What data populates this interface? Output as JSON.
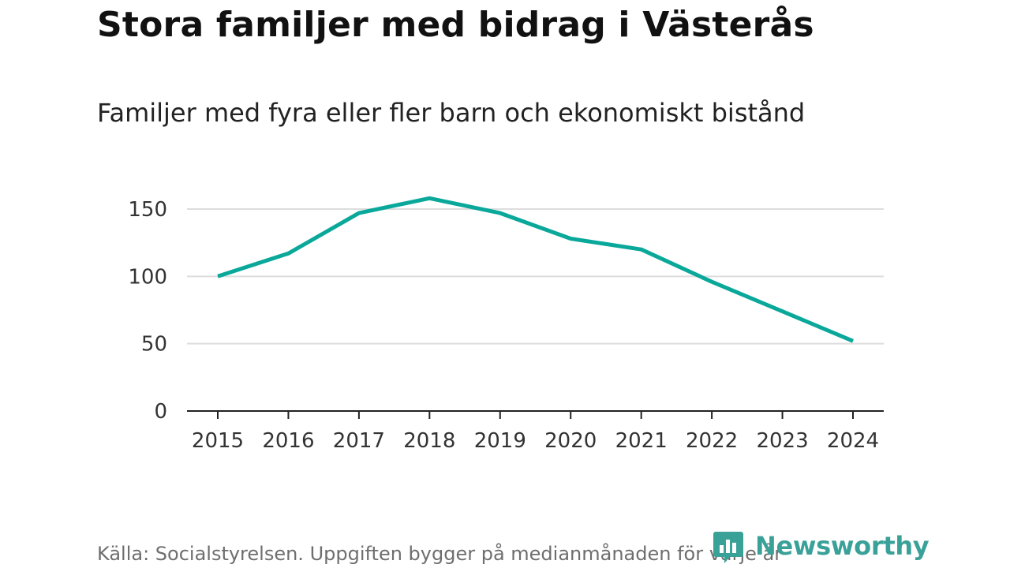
{
  "header": {
    "title": "Stora familjer med bidrag i Västerås",
    "subtitle": "Familjer med fyra eller fler barn och ekonomiskt bistånd"
  },
  "footer": {
    "source": "Källa: Socialstyrelsen. Uppgiften bygger på medianmånaden för varje år",
    "brand": "Newsworthy",
    "brand_icon": "chart-speech-bubble-icon"
  },
  "colors": {
    "line": "#0aa89a",
    "grid": "#dddddd",
    "axis": "#222222",
    "brand": "#3aa198"
  },
  "chart_data": {
    "type": "line",
    "title": "Stora familjer med bidrag i Västerås",
    "subtitle": "Familjer med fyra eller fler barn och ekonomiskt bistånd",
    "xlabel": "",
    "ylabel": "",
    "x": [
      "2015",
      "2016",
      "2017",
      "2018",
      "2019",
      "2020",
      "2021",
      "2022",
      "2023",
      "2024"
    ],
    "series": [
      {
        "values": [
          100,
          117,
          147,
          158,
          147,
          128,
          120,
          96,
          74,
          52
        ]
      }
    ],
    "yticks": [
      0,
      50,
      100,
      150
    ],
    "ylim": [
      0,
      165
    ],
    "grid": true,
    "legend": "none"
  }
}
